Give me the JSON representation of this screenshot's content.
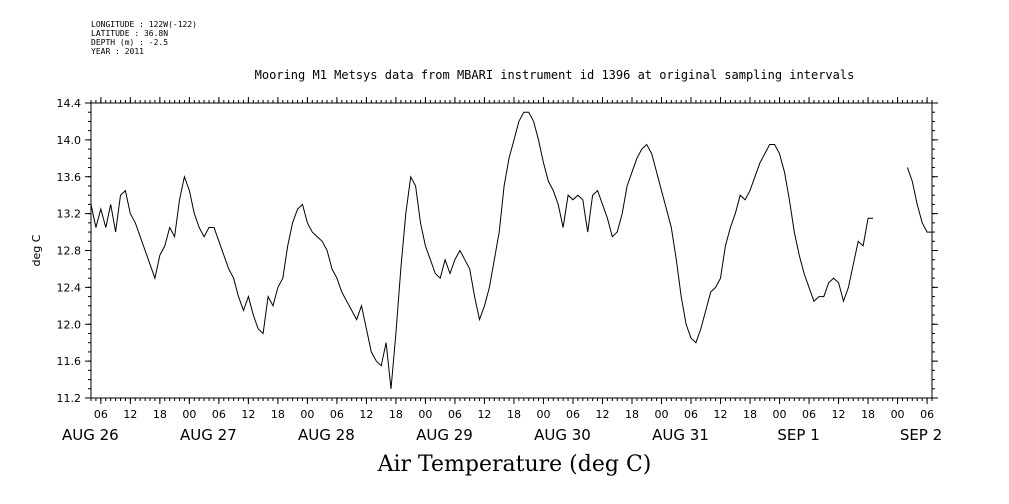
{
  "header": {
    "longitude": "LONGITUDE : 122W(-122)",
    "latitude": "LATITUDE : 36.8N",
    "depth": "DEPTH (m) : -2.5",
    "year": "YEAR : 2011"
  },
  "chart_data": {
    "type": "line",
    "title": "Mooring M1 Metsys data from MBARI instrument id 1396 at original sampling intervals",
    "bottom_title": "Air Temperature (deg C)",
    "ylabel": "deg C",
    "xlabel": "",
    "ylim": [
      11.2,
      14.4
    ],
    "xlim_hours": [
      0,
      171
    ],
    "yticks": [
      "11.2",
      "11.6",
      "12.0",
      "12.4",
      "12.8",
      "13.2",
      "13.6",
      "14.0",
      "14.4"
    ],
    "hour_tick_labels": [
      "06",
      "12",
      "18",
      "00",
      "06",
      "12",
      "18",
      "00",
      "06",
      "12",
      "18",
      "00",
      "06",
      "12",
      "18",
      "00",
      "06",
      "12",
      "18",
      "00",
      "06",
      "12",
      "18",
      "00",
      "06",
      "12",
      "18",
      "00",
      "06",
      "12",
      "18",
      "00",
      "06",
      "12",
      "18",
      "00",
      "06",
      "12",
      "18",
      "00",
      "06",
      "12",
      "18",
      "00",
      "06",
      "12",
      "18",
      "00"
    ],
    "day_labels": [
      "AUG 26",
      "AUG 27",
      "AUG 28",
      "AUG 29",
      "AUG 30",
      "AUG 31",
      "SEP  1",
      "SEP  2"
    ],
    "grid": false,
    "series": [
      {
        "name": "",
        "x_hours": [
          0,
          1,
          2,
          3,
          4,
          5,
          6,
          7,
          8,
          9,
          10,
          11,
          12,
          13,
          14,
          15,
          16,
          17,
          18,
          19,
          20,
          21,
          22,
          23,
          24,
          25,
          26,
          27,
          28,
          29,
          30,
          31,
          32,
          33,
          34,
          35,
          36,
          37,
          38,
          39,
          40,
          41,
          42,
          43,
          44,
          45,
          46,
          47,
          48,
          49,
          50,
          51,
          52,
          53,
          54,
          55,
          56,
          57,
          58,
          59,
          60,
          61,
          62,
          63,
          64,
          65,
          66,
          67,
          68,
          69,
          70,
          71,
          72,
          73,
          74,
          75,
          76,
          77,
          78,
          79,
          80,
          81,
          82,
          83,
          84,
          85,
          86,
          87,
          88,
          89,
          90,
          91,
          92,
          93,
          94,
          95,
          96,
          97,
          98,
          99,
          100,
          101,
          102,
          103,
          104,
          105,
          106,
          107,
          108,
          109,
          110,
          111,
          112,
          113,
          114,
          115,
          116,
          117,
          118,
          119,
          120,
          121,
          122,
          123,
          124,
          125,
          126,
          127,
          128,
          129,
          130,
          131,
          132,
          133,
          134,
          135,
          136,
          137,
          138,
          139,
          140,
          141,
          142,
          143,
          144,
          145,
          146,
          147,
          148,
          149,
          150,
          151,
          152,
          153,
          154,
          155,
          156,
          157,
          158,
          159,
          160,
          161,
          162,
          163,
          164,
          165,
          166,
          167,
          168,
          169,
          170,
          171
        ],
        "values": [
          13.3,
          13.05,
          13.25,
          13.05,
          13.3,
          13.0,
          13.4,
          13.45,
          13.2,
          13.1,
          12.95,
          12.8,
          12.65,
          12.5,
          12.75,
          12.85,
          13.05,
          12.95,
          13.35,
          13.6,
          13.45,
          13.2,
          13.05,
          12.95,
          13.05,
          13.05,
          12.9,
          12.75,
          12.6,
          12.5,
          12.3,
          12.15,
          12.3,
          12.1,
          11.95,
          11.9,
          12.3,
          12.2,
          12.4,
          12.5,
          12.85,
          13.1,
          13.25,
          13.3,
          13.1,
          13.0,
          12.95,
          12.9,
          12.8,
          12.6,
          12.5,
          12.35,
          12.25,
          12.15,
          12.05,
          12.2,
          11.95,
          11.7,
          11.6,
          11.55,
          11.8,
          11.3,
          11.9,
          12.6,
          13.2,
          13.6,
          13.5,
          13.1,
          12.85,
          12.7,
          12.55,
          12.5,
          12.7,
          12.55,
          12.7,
          12.8,
          12.7,
          12.6,
          12.3,
          12.05,
          12.2,
          12.4,
          12.7,
          13.0,
          13.5,
          13.8,
          14.0,
          14.2,
          14.3,
          14.3,
          14.2,
          14.0,
          13.75,
          13.55,
          13.45,
          13.3,
          13.05,
          13.4,
          13.35,
          13.4,
          13.35,
          13.0,
          13.4,
          13.45,
          13.3,
          13.15,
          12.95,
          13.0,
          13.2,
          13.5,
          13.65,
          13.8,
          13.9,
          13.95,
          13.85,
          13.65,
          13.45,
          13.25,
          13.05,
          12.7,
          12.3,
          12.0,
          11.85,
          11.8,
          11.95,
          12.15,
          12.35,
          12.4,
          12.5,
          12.85,
          13.05,
          13.2,
          13.4,
          13.35,
          13.45,
          13.6,
          13.75,
          13.85,
          13.95,
          13.95,
          13.85,
          13.65,
          13.35,
          13.0,
          12.75,
          12.55,
          12.4,
          12.25,
          12.3,
          12.3,
          12.45,
          12.5,
          12.45,
          12.25,
          12.4,
          12.65,
          12.9,
          12.85,
          13.15,
          13.15,
          null,
          null,
          null,
          null,
          null,
          null,
          13.7,
          13.55,
          13.3,
          13.1,
          13.0,
          13.0
        ]
      }
    ]
  }
}
